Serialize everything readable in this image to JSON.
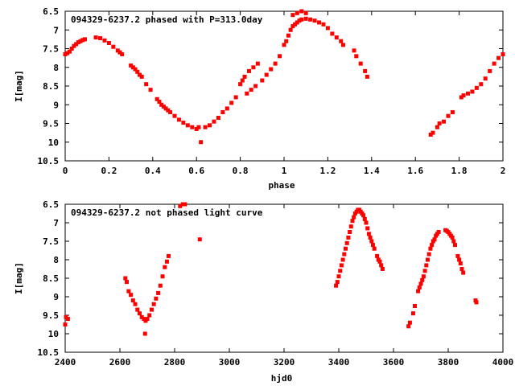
{
  "chart_data": [
    {
      "type": "scatter",
      "title": "094329-6237.2 phased with P=313.0day",
      "xlabel": "phase",
      "ylabel": "I[mag]",
      "xlim": [
        0,
        2
      ],
      "ylim": [
        6.5,
        10.5
      ],
      "y_inverted": true,
      "grid": false,
      "marker_color": "#ff0000",
      "xticks": [
        "0",
        "0.2",
        "0.4",
        "0.6",
        "0.8",
        "1",
        "1.2",
        "1.4",
        "1.6",
        "1.8",
        "2"
      ],
      "xtick_values": [
        0,
        0.2,
        0.4,
        0.6,
        0.8,
        1.0,
        1.2,
        1.4,
        1.6,
        1.8,
        2.0
      ],
      "yticks": [
        "6.5",
        "7",
        "7.5",
        "8",
        "8.5",
        "9",
        "9.5",
        "10",
        "10.5"
      ],
      "ytick_values": [
        6.5,
        7,
        7.5,
        8,
        8.5,
        9,
        9.5,
        10,
        10.5
      ],
      "series": [
        {
          "points": [
            [
              0.0,
              7.65
            ],
            [
              0.01,
              7.62
            ],
            [
              0.02,
              7.58
            ],
            [
              0.03,
              7.5
            ],
            [
              0.04,
              7.43
            ],
            [
              0.05,
              7.38
            ],
            [
              0.06,
              7.33
            ],
            [
              0.07,
              7.3
            ],
            [
              0.08,
              7.27
            ],
            [
              0.09,
              7.25
            ],
            [
              0.14,
              7.2
            ],
            [
              0.16,
              7.22
            ],
            [
              0.18,
              7.28
            ],
            [
              0.2,
              7.35
            ],
            [
              0.22,
              7.45
            ],
            [
              0.24,
              7.55
            ],
            [
              0.25,
              7.6
            ],
            [
              0.26,
              7.65
            ],
            [
              0.3,
              7.95
            ],
            [
              0.31,
              8.0
            ],
            [
              0.32,
              8.05
            ],
            [
              0.33,
              8.12
            ],
            [
              0.34,
              8.2
            ],
            [
              0.35,
              8.25
            ],
            [
              0.37,
              8.45
            ],
            [
              0.39,
              8.6
            ],
            [
              0.42,
              8.85
            ],
            [
              0.43,
              8.92
            ],
            [
              0.44,
              9.0
            ],
            [
              0.45,
              9.05
            ],
            [
              0.46,
              9.1
            ],
            [
              0.47,
              9.15
            ],
            [
              0.48,
              9.2
            ],
            [
              0.5,
              9.3
            ],
            [
              0.52,
              9.4
            ],
            [
              0.54,
              9.48
            ],
            [
              0.56,
              9.55
            ],
            [
              0.58,
              9.6
            ],
            [
              0.6,
              9.65
            ],
            [
              0.61,
              9.6
            ],
            [
              0.62,
              10.0
            ],
            [
              0.64,
              9.6
            ],
            [
              0.66,
              9.55
            ],
            [
              0.68,
              9.45
            ],
            [
              0.7,
              9.35
            ],
            [
              0.72,
              9.2
            ],
            [
              0.74,
              9.1
            ],
            [
              0.76,
              8.95
            ],
            [
              0.78,
              8.8
            ],
            [
              0.8,
              8.45
            ],
            [
              0.81,
              8.35
            ],
            [
              0.82,
              8.25
            ],
            [
              0.84,
              8.1
            ],
            [
              0.86,
              8.0
            ],
            [
              0.88,
              7.9
            ],
            [
              0.83,
              8.7
            ],
            [
              0.85,
              8.6
            ],
            [
              0.87,
              8.5
            ],
            [
              0.9,
              8.35
            ],
            [
              0.92,
              8.2
            ],
            [
              0.94,
              8.05
            ],
            [
              0.96,
              7.9
            ],
            [
              0.98,
              7.7
            ],
            [
              1.0,
              7.4
            ],
            [
              1.01,
              7.3
            ],
            [
              1.02,
              7.15
            ],
            [
              1.03,
              7.0
            ],
            [
              1.04,
              6.9
            ],
            [
              1.05,
              6.85
            ],
            [
              1.06,
              6.8
            ],
            [
              1.07,
              6.75
            ],
            [
              1.08,
              6.72
            ],
            [
              1.1,
              6.7
            ],
            [
              1.12,
              6.72
            ],
            [
              1.14,
              6.75
            ],
            [
              1.16,
              6.8
            ],
            [
              1.18,
              6.85
            ],
            [
              1.2,
              6.95
            ],
            [
              1.04,
              6.6
            ],
            [
              1.06,
              6.55
            ],
            [
              1.08,
              6.5
            ],
            [
              1.1,
              6.55
            ],
            [
              1.22,
              7.1
            ],
            [
              1.24,
              7.2
            ],
            [
              1.26,
              7.3
            ],
            [
              1.27,
              7.4
            ],
            [
              1.32,
              7.55
            ],
            [
              1.33,
              7.7
            ],
            [
              1.35,
              7.9
            ],
            [
              1.37,
              8.1
            ],
            [
              1.38,
              8.25
            ],
            [
              1.67,
              9.8
            ],
            [
              1.68,
              9.75
            ],
            [
              1.7,
              9.6
            ],
            [
              1.71,
              9.5
            ],
            [
              1.73,
              9.45
            ],
            [
              1.75,
              9.3
            ],
            [
              1.77,
              9.2
            ],
            [
              1.81,
              8.8
            ],
            [
              1.82,
              8.75
            ],
            [
              1.84,
              8.7
            ],
            [
              1.86,
              8.65
            ],
            [
              1.88,
              8.55
            ],
            [
              1.9,
              8.45
            ],
            [
              1.92,
              8.3
            ],
            [
              1.94,
              8.1
            ],
            [
              1.96,
              7.9
            ],
            [
              1.98,
              7.75
            ],
            [
              2.0,
              7.65
            ]
          ]
        }
      ]
    },
    {
      "type": "scatter",
      "title": "094329-6237.2 not phased light curve",
      "xlabel": "hjd0",
      "ylabel": "I[mag]",
      "xlim": [
        2400,
        4000
      ],
      "ylim": [
        6.5,
        10.5
      ],
      "y_inverted": true,
      "grid": false,
      "marker_color": "#ff0000",
      "xticks": [
        "2400",
        "2600",
        "2800",
        "3000",
        "3200",
        "3400",
        "3600",
        "3800",
        "4000"
      ],
      "xtick_values": [
        2400,
        2600,
        2800,
        3000,
        3200,
        3400,
        3600,
        3800,
        4000
      ],
      "yticks": [
        "6.5",
        "7",
        "7.5",
        "8",
        "8.5",
        "9",
        "9.5",
        "10",
        "10.5"
      ],
      "ytick_values": [
        6.5,
        7,
        7.5,
        8,
        8.5,
        9,
        9.5,
        10,
        10.5
      ],
      "series": [
        {
          "points": [
            [
              2400,
              9.75
            ],
            [
              2403,
              9.55
            ],
            [
              2410,
              9.6
            ],
            [
              2620,
              8.5
            ],
            [
              2625,
              8.6
            ],
            [
              2632,
              8.85
            ],
            [
              2640,
              8.95
            ],
            [
              2648,
              9.1
            ],
            [
              2656,
              9.2
            ],
            [
              2664,
              9.35
            ],
            [
              2672,
              9.45
            ],
            [
              2680,
              9.55
            ],
            [
              2688,
              9.6
            ],
            [
              2694,
              9.65
            ],
            [
              2700,
              9.6
            ],
            [
              2708,
              9.5
            ],
            [
              2716,
              9.35
            ],
            [
              2724,
              9.2
            ],
            [
              2732,
              9.05
            ],
            [
              2740,
              8.9
            ],
            [
              2748,
              8.7
            ],
            [
              2756,
              8.45
            ],
            [
              2764,
              8.2
            ],
            [
              2772,
              8.05
            ],
            [
              2778,
              7.9
            ],
            [
              2692,
              10.0
            ],
            [
              2820,
              6.55
            ],
            [
              2830,
              6.5
            ],
            [
              2838,
              6.5
            ],
            [
              2892,
              7.45
            ],
            [
              3390,
              8.7
            ],
            [
              3395,
              8.6
            ],
            [
              3400,
              8.45
            ],
            [
              3405,
              8.3
            ],
            [
              3410,
              8.15
            ],
            [
              3415,
              8.0
            ],
            [
              3420,
              7.85
            ],
            [
              3425,
              7.7
            ],
            [
              3430,
              7.55
            ],
            [
              3435,
              7.4
            ],
            [
              3440,
              7.25
            ],
            [
              3445,
              7.1
            ],
            [
              3450,
              6.95
            ],
            [
              3455,
              6.85
            ],
            [
              3460,
              6.75
            ],
            [
              3465,
              6.7
            ],
            [
              3470,
              6.65
            ],
            [
              3475,
              6.65
            ],
            [
              3480,
              6.7
            ],
            [
              3485,
              6.75
            ],
            [
              3490,
              6.8
            ],
            [
              3495,
              6.9
            ],
            [
              3500,
              7.0
            ],
            [
              3505,
              7.15
            ],
            [
              3510,
              7.3
            ],
            [
              3515,
              7.4
            ],
            [
              3520,
              7.5
            ],
            [
              3525,
              7.6
            ],
            [
              3530,
              7.7
            ],
            [
              3540,
              7.9
            ],
            [
              3545,
              8.0
            ],
            [
              3550,
              8.05
            ],
            [
              3555,
              8.15
            ],
            [
              3560,
              8.25
            ],
            [
              3655,
              9.8
            ],
            [
              3660,
              9.7
            ],
            [
              3672,
              9.45
            ],
            [
              3678,
              9.25
            ],
            [
              3690,
              8.85
            ],
            [
              3695,
              8.75
            ],
            [
              3700,
              8.65
            ],
            [
              3705,
              8.55
            ],
            [
              3710,
              8.45
            ],
            [
              3715,
              8.3
            ],
            [
              3720,
              8.15
            ],
            [
              3725,
              8.0
            ],
            [
              3730,
              7.85
            ],
            [
              3735,
              7.7
            ],
            [
              3740,
              7.6
            ],
            [
              3745,
              7.5
            ],
            [
              3750,
              7.45
            ],
            [
              3755,
              7.35
            ],
            [
              3760,
              7.3
            ],
            [
              3765,
              7.25
            ],
            [
              3790,
              7.2
            ],
            [
              3795,
              7.22
            ],
            [
              3800,
              7.25
            ],
            [
              3805,
              7.3
            ],
            [
              3810,
              7.35
            ],
            [
              3815,
              7.4
            ],
            [
              3820,
              7.5
            ],
            [
              3825,
              7.6
            ],
            [
              3835,
              7.9
            ],
            [
              3840,
              8.0
            ],
            [
              3845,
              8.1
            ],
            [
              3850,
              8.25
            ],
            [
              3855,
              8.35
            ],
            [
              3900,
              9.1
            ],
            [
              3903,
              9.15
            ]
          ]
        }
      ]
    }
  ]
}
